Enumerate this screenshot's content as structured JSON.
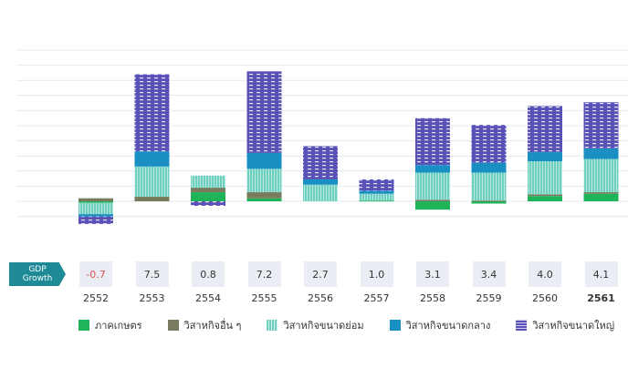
{
  "chart_data": {
    "type": "bar",
    "stacked": true,
    "categories": [
      "2552",
      "2553",
      "2554",
      "2555",
      "2556",
      "2557",
      "2558",
      "2559",
      "2560",
      "2561"
    ],
    "series": [
      {
        "name": "ภาคเกษตร",
        "color": "#1fb45a",
        "values": [
          -0.2,
          0.0,
          1.2,
          0.4,
          0.0,
          0.1,
          -1.1,
          -0.3,
          0.7,
          1.0
        ]
      },
      {
        "name": "วิสาหกิจอื่น ๆ",
        "color": "#7a7a5e",
        "values": [
          0.4,
          0.6,
          0.6,
          0.8,
          0.0,
          0.0,
          0.2,
          0.1,
          0.2,
          0.2
        ]
      },
      {
        "name": "วิสาหกิจขนาดย่อม",
        "color": "#6fd0c0",
        "values": [
          -1.5,
          4.0,
          1.6,
          3.1,
          2.2,
          0.9,
          3.6,
          3.7,
          4.4,
          4.4
        ]
      },
      {
        "name": "วิสาหกิจขนาดกลาง",
        "color": "#1a8fc4",
        "values": [
          -0.3,
          2.0,
          0.0,
          2.1,
          0.7,
          0.4,
          1.0,
          1.3,
          1.2,
          1.4
        ]
      },
      {
        "name": "วิสาหกิจขนาดใหญ่",
        "color": "#5a52b8",
        "values": [
          -1.0,
          10.2,
          -0.6,
          10.8,
          4.4,
          1.5,
          6.2,
          5.0,
          6.1,
          6.1
        ]
      }
    ],
    "gdp_label": "GDP\nGrowth",
    "gdp_growth": [
      "-0.7",
      "7.5",
      "0.8",
      "7.2",
      "2.7",
      "1.0",
      "3.1",
      "3.4",
      "4.0",
      "4.1"
    ],
    "bold_category": "2561",
    "ylim": [
      -4,
      20
    ],
    "grid": true
  }
}
